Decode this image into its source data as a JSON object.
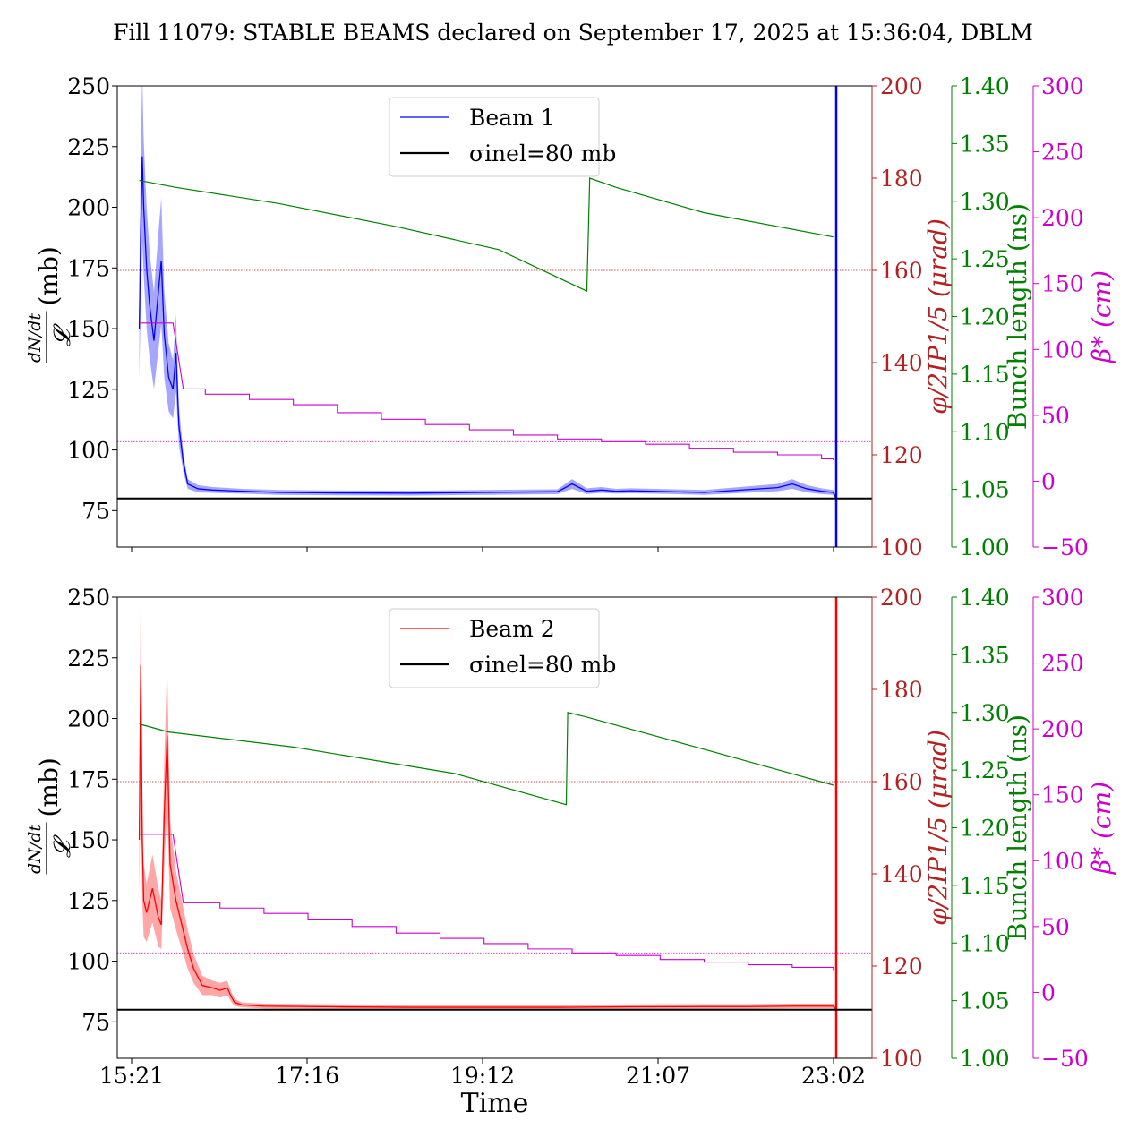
{
  "title": "Fill 11079: STABLE BEAMS declared on September 17, 2025 at 15:36:04, DBLM",
  "colors": {
    "beam1": "#0000ff",
    "beam2": "#ff0000",
    "angle_axis": "#b22222",
    "bunch_axis": "#008000",
    "beta_axis": "#cc00cc",
    "reference": "#000000"
  },
  "chart_data": [
    {
      "type": "line",
      "panel": "top",
      "xlabel": "",
      "ylabel": "dN/dt / 𝓛 (mb)",
      "ylabel_parts": {
        "numerator": "dN/dt",
        "denominator": "𝓛",
        "unit": "(mb)"
      },
      "ylim": [
        60,
        250
      ],
      "yticks": [
        75,
        100,
        125,
        150,
        175,
        200,
        225,
        250
      ],
      "x_range_min": [
        0,
        490
      ],
      "xticks": [
        "15:21",
        "17:16",
        "19:12",
        "21:07",
        "23:02"
      ],
      "grid": false,
      "legend_position": "top-center",
      "legend": [
        {
          "label": "Beam 1",
          "kind": "series"
        },
        {
          "label": "σinel=80 mb",
          "kind": "reference"
        }
      ],
      "reference_line": {
        "label": "σinel=80 mb",
        "value": 80
      },
      "series": [
        {
          "name": "Beam 1",
          "axis": "cross_section",
          "x": [
            15,
            16,
            17,
            18,
            20,
            22,
            25,
            28,
            30,
            32,
            35,
            38,
            40,
            42,
            45,
            48,
            55,
            65,
            85,
            110,
            150,
            200,
            250,
            300,
            310,
            320,
            330,
            340,
            350,
            400,
            450,
            460,
            470,
            480,
            488,
            490
          ],
          "y": [
            150,
            190,
            221,
            200,
            175,
            160,
            145,
            165,
            178,
            148,
            130,
            125,
            140,
            110,
            95,
            86,
            84,
            83.5,
            83,
            82.5,
            82.3,
            82.2,
            82.5,
            82.8,
            86,
            83,
            83.5,
            83,
            83.2,
            82.5,
            84.5,
            86,
            84,
            83,
            82.5,
            80
          ],
          "band_halfwidth": [
            20,
            30,
            35,
            28,
            25,
            22,
            20,
            24,
            26,
            18,
            14,
            12,
            16,
            8,
            4,
            2,
            1.5,
            1.2,
            1,
            1,
            1,
            1,
            1,
            1,
            2,
            1.2,
            1.2,
            1,
            1,
            1,
            1.5,
            2,
            1.5,
            1.2,
            1,
            1
          ]
        },
        {
          "name": "",
          "axis": "bunch_length_ns",
          "x": [
            15,
            40,
            110,
            190,
            260,
            320,
            321,
            322,
            340,
            400,
            488
          ],
          "y": [
            1.318,
            1.312,
            1.298,
            1.278,
            1.258,
            1.222,
            1.27,
            1.32,
            1.312,
            1.29,
            1.269
          ]
        },
        {
          "name": "",
          "axis": "beta_star_cm",
          "x": [
            15,
            38,
            45,
            60,
            90,
            120,
            150,
            180,
            210,
            240,
            270,
            300,
            330,
            360,
            390,
            420,
            450,
            480,
            488
          ],
          "y": [
            120,
            120,
            70,
            66,
            62,
            58,
            52,
            47,
            43,
            39,
            35,
            32,
            30,
            28,
            25,
            22,
            20,
            17,
            16
          ]
        }
      ],
      "horizontal_lines": [
        {
          "axis": "half_crossing_angle_urad",
          "value": 160
        },
        {
          "axis": "beta_star_cm",
          "value": 30
        }
      ],
      "axes": [
        {
          "label": "φ/2IP1/5 (μrad)",
          "ylim": [
            100,
            200
          ],
          "ticks": [
            100,
            120,
            140,
            160,
            180,
            200
          ]
        },
        {
          "label": "Bunch length (ns)",
          "ylim": [
            1.0,
            1.4
          ],
          "ticks": [
            "1.00",
            "1.05",
            "1.10",
            "1.15",
            "1.20",
            "1.25",
            "1.30",
            "1.35",
            "1.40"
          ]
        },
        {
          "label": "β* (cm)",
          "ylim": [
            -50,
            300
          ],
          "ticks": [
            -50,
            0,
            50,
            100,
            150,
            200,
            250,
            300
          ]
        }
      ]
    },
    {
      "type": "line",
      "panel": "bottom",
      "xlabel": "Time",
      "ylabel": "dN/dt / 𝓛 (mb)",
      "ylabel_parts": {
        "numerator": "dN/dt",
        "denominator": "𝓛",
        "unit": "(mb)"
      },
      "ylim": [
        60,
        250
      ],
      "yticks": [
        75,
        100,
        125,
        150,
        175,
        200,
        225,
        250
      ],
      "x_range_min": [
        0,
        490
      ],
      "xticks": [
        "15:21",
        "17:16",
        "19:12",
        "21:07",
        "23:02"
      ],
      "grid": false,
      "legend_position": "top-center",
      "legend": [
        {
          "label": "Beam 2",
          "kind": "series"
        },
        {
          "label": "σinel=80 mb",
          "kind": "reference"
        }
      ],
      "reference_line": {
        "label": "σinel=80 mb",
        "value": 80
      },
      "series": [
        {
          "name": "Beam 2",
          "axis": "cross_section",
          "x": [
            15,
            16,
            17,
            18,
            20,
            24,
            28,
            30,
            32,
            34,
            36,
            40,
            44,
            48,
            52,
            58,
            65,
            70,
            75,
            78,
            80,
            85,
            100,
            150,
            200,
            250,
            300,
            350,
            400,
            430,
            460,
            488,
            490
          ],
          "y": [
            150,
            222,
            150,
            125,
            120,
            130,
            118,
            115,
            160,
            193,
            140,
            125,
            115,
            105,
            97,
            90,
            89,
            88,
            89,
            85,
            83,
            82,
            81.5,
            81.2,
            81,
            81,
            81,
            81.2,
            81.3,
            81.3,
            81.5,
            81.5,
            80
          ],
          "band_halfwidth": [
            25,
            35,
            25,
            15,
            12,
            14,
            12,
            10,
            22,
            30,
            18,
            12,
            10,
            8,
            6,
            4,
            3,
            3,
            3,
            2,
            1.5,
            1,
            1,
            1,
            1,
            1,
            1,
            1,
            1,
            1,
            1,
            1,
            1
          ]
        },
        {
          "name": "",
          "axis": "bunch_length_ns",
          "x": [
            15,
            35,
            120,
            230,
            306,
            307,
            320,
            400,
            488
          ],
          "y": [
            1.29,
            1.283,
            1.27,
            1.247,
            1.22,
            1.3,
            1.296,
            1.268,
            1.237
          ]
        },
        {
          "name": "",
          "axis": "beta_star_cm",
          "x": [
            15,
            38,
            45,
            70,
            100,
            130,
            160,
            190,
            220,
            250,
            280,
            310,
            340,
            370,
            400,
            430,
            460,
            488
          ],
          "y": [
            120,
            120,
            68,
            64,
            60,
            55,
            50,
            45,
            41,
            37,
            33,
            30,
            28,
            25,
            23,
            21,
            19,
            17
          ]
        }
      ],
      "horizontal_lines": [
        {
          "axis": "half_crossing_angle_urad",
          "value": 160
        },
        {
          "axis": "beta_star_cm",
          "value": 30
        }
      ],
      "axes": [
        {
          "label": "φ/2IP1/5 (μrad)",
          "ylim": [
            100,
            200
          ],
          "ticks": [
            100,
            120,
            140,
            160,
            180,
            200
          ]
        },
        {
          "label": "Bunch length (ns)",
          "ylim": [
            1.0,
            1.4
          ],
          "ticks": [
            "1.00",
            "1.05",
            "1.10",
            "1.15",
            "1.20",
            "1.25",
            "1.30",
            "1.35",
            "1.40"
          ]
        },
        {
          "label": "β* (cm)",
          "ylim": [
            -50,
            300
          ],
          "ticks": [
            -50,
            0,
            50,
            100,
            150,
            200,
            250,
            300
          ]
        }
      ]
    }
  ]
}
